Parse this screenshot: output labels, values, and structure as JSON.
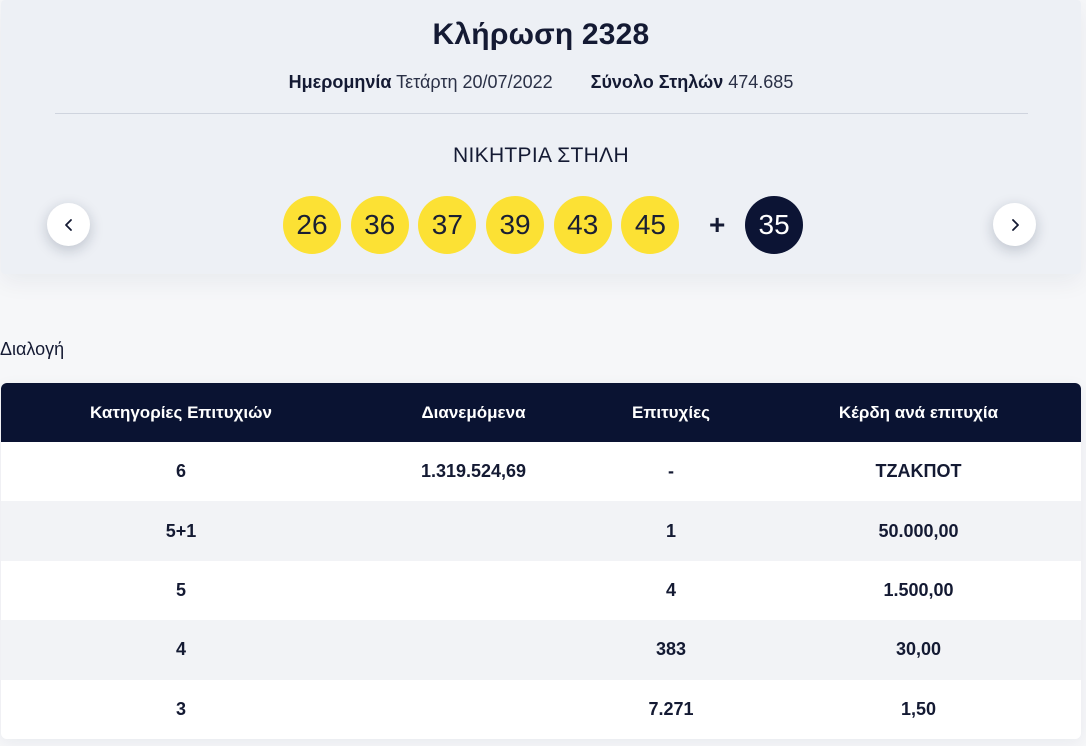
{
  "draw": {
    "title": "Κλήρωση 2328",
    "date_label": "Ημερομηνία",
    "date_value": "Τετάρτη 20/07/2022",
    "columns_label": "Σύνολο Στηλών",
    "columns_value": "474.685",
    "winning_label": "ΝΙΚΗΤΡΙΑ ΣΤΗΛΗ",
    "numbers": [
      "26",
      "36",
      "37",
      "39",
      "43",
      "45"
    ],
    "plus": "+",
    "bonus": "35",
    "colors": {
      "ball": "#fce134",
      "bonus": "#0c1434",
      "header": "#0a1332"
    },
    "icons": {
      "prev": "chevron-left-icon",
      "next": "chevron-right-icon"
    }
  },
  "section_label": "Διαλογή",
  "table": {
    "headers": [
      "Κατηγορίες Επιτυχιών",
      "Διανεμόμενα",
      "Επιτυχίες",
      "Κέρδη ανά επιτυχία"
    ],
    "rows": [
      [
        "6",
        "1.319.524,69",
        "-",
        "ΤΖΑΚΠΟΤ"
      ],
      [
        "5+1",
        "",
        "1",
        "50.000,00"
      ],
      [
        "5",
        "",
        "4",
        "1.500,00"
      ],
      [
        "4",
        "",
        "383",
        "30,00"
      ],
      [
        "3",
        "",
        "7.271",
        "1,50"
      ]
    ]
  }
}
